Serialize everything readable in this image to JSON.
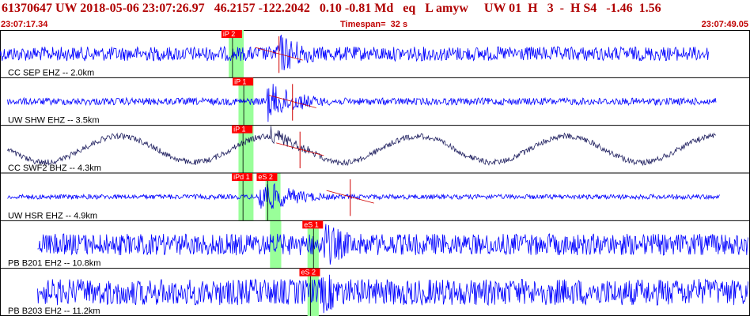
{
  "header": {
    "event_line": "61370647 UW 2018-05-06 23:07:26.97   46.2157 -122.2042   0.10 -0.81 Md   eq   L amyw     UW 01  H   3  -  H S4   -1.46  1.56",
    "time_start": "23:07:17.34",
    "timespan": "Timespan=  32 s",
    "time_end": "23:07:49.05"
  },
  "colors": {
    "trace": "#0000ff",
    "trace_dark": "#202060",
    "pick_box": "#ff0000",
    "window": "#99ff99",
    "arrival": "#d00000",
    "header_text": "#b00000"
  },
  "channels": [
    {
      "label": "CC SEP EHZ -- 2.0km",
      "color_key": "trace",
      "type": "noise",
      "amp": 0.3,
      "start": 0.0,
      "end": 0.945,
      "event_at": 0.37,
      "event_amp": 0.95,
      "picks": [
        {
          "label": "iP 2",
          "at": 0.31
        }
      ],
      "windows": [
        [
          0.305,
          0.325
        ]
      ],
      "arrivals": [
        0.372
      ]
    },
    {
      "label": "UW SHW EHZ -- 3.5km",
      "color_key": "trace",
      "type": "noise",
      "amp": 0.15,
      "start": 0.01,
      "end": 0.955,
      "event_at": 0.355,
      "event_amp": 0.9,
      "picks": [
        {
          "label": "iP 1",
          "at": 0.325
        }
      ],
      "windows": [
        [
          0.318,
          0.338
        ]
      ],
      "arrivals": [
        0.39
      ]
    },
    {
      "label": "CC SWF2 BHZ -- 4.3km",
      "color_key": "trace_dark",
      "type": "sine",
      "amp": 0.55,
      "start": 0.01,
      "end": 0.955,
      "event_at": 0.36,
      "event_amp": 0.5,
      "picks": [
        {
          "label": "iP 1",
          "at": 0.324
        }
      ],
      "windows": [
        [
          0.318,
          0.338
        ]
      ],
      "arrivals": [
        0.4
      ]
    },
    {
      "label": "UW HSR EHZ -- 4.9km",
      "color_key": "trace",
      "type": "noise",
      "amp": 0.1,
      "start": 0.01,
      "end": 0.96,
      "event_at": 0.345,
      "event_amp": 0.85,
      "picks": [
        {
          "label": "iPd 1",
          "at": 0.324
        },
        {
          "label": "eS 2",
          "at": 0.357
        }
      ],
      "windows": [
        [
          0.318,
          0.338
        ],
        [
          0.354,
          0.374
        ]
      ],
      "arrivals": [
        0.467
      ]
    },
    {
      "label": "PB B201 EH2 -- 10.8km",
      "color_key": "trace",
      "type": "noise",
      "amp": 0.45,
      "start": 0.05,
      "end": 0.998,
      "event_at": 0.432,
      "event_amp": 1.0,
      "picks": [
        {
          "label": "eS 1",
          "at": 0.418
        }
      ],
      "windows": [
        [
          0.36,
          0.375
        ],
        [
          0.41,
          0.425
        ]
      ],
      "arrivals": []
    },
    {
      "label": "PB B203 EH2 -- 11.2km",
      "color_key": "trace",
      "type": "noise",
      "amp": 0.55,
      "start": 0.05,
      "end": 0.998,
      "event_at": 0.428,
      "event_amp": 1.0,
      "picks": [
        {
          "label": "eS 2",
          "at": 0.414
        }
      ],
      "windows": [
        [
          0.41,
          0.425
        ]
      ],
      "arrivals": []
    }
  ]
}
